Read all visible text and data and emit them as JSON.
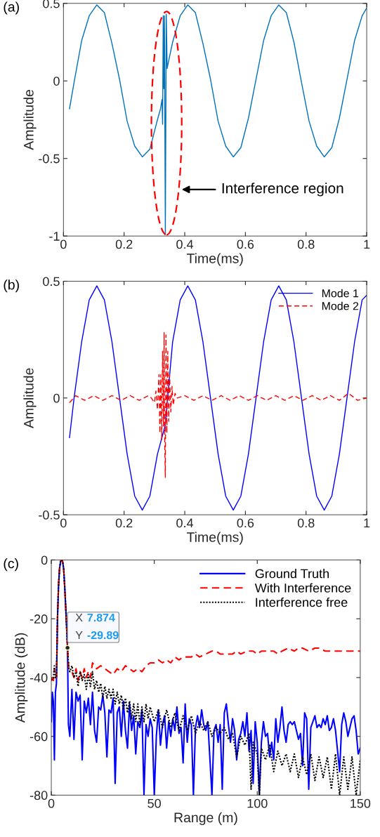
{
  "chart_data": [
    {
      "type": "line",
      "title": "(a)",
      "xlabel": "Time(ms)",
      "ylabel": "Amplitude",
      "xlim": [
        0,
        1
      ],
      "ylim": [
        -1,
        0.5
      ],
      "xticks": [
        0,
        0.2,
        0.4,
        0.6,
        0.8,
        1
      ],
      "yticks": [
        -1,
        -0.5,
        0,
        0.5
      ],
      "grid": false,
      "legend": false,
      "annotations": [
        "Interference region"
      ],
      "series": [
        {
          "color": "#0072bd",
          "line_style": "solid",
          "x": [
            0.02,
            0.035,
            0.06,
            0.085,
            0.11,
            0.135,
            0.16,
            0.185,
            0.21,
            0.235,
            0.26,
            0.285,
            0.31,
            0.32,
            0.325,
            0.327,
            0.329,
            0.331,
            0.333,
            0.336,
            0.339,
            0.342,
            0.346,
            0.36,
            0.385,
            0.41,
            0.435,
            0.46,
            0.485,
            0.51,
            0.535,
            0.56,
            0.585,
            0.61,
            0.635,
            0.66,
            0.685,
            0.71,
            0.735,
            0.76,
            0.785,
            0.81,
            0.835,
            0.86,
            0.885,
            0.91,
            0.935,
            0.96,
            0.985,
            1
          ],
          "values": [
            -0.18,
            -0.01,
            0.26,
            0.42,
            0.49,
            0.44,
            0.24,
            0.01,
            -0.26,
            -0.42,
            -0.49,
            -0.44,
            -0.25,
            -0.18,
            -0.12,
            -0.28,
            0.42,
            -0.05,
            0.42,
            -0.99,
            0.43,
            0.08,
            0.12,
            0.25,
            0.42,
            0.49,
            0.44,
            0.24,
            0.01,
            -0.26,
            -0.42,
            -0.49,
            -0.43,
            -0.24,
            0.01,
            0.26,
            0.42,
            0.49,
            0.44,
            0.25,
            -0.01,
            -0.26,
            -0.42,
            -0.49,
            -0.43,
            -0.24,
            0.01,
            0.26,
            0.42,
            0.47
          ]
        }
      ]
    },
    {
      "type": "line",
      "title": "(b)",
      "xlabel": "Time(ms)",
      "ylabel": "Amplitude",
      "xlim": [
        0,
        1
      ],
      "ylim": [
        -0.5,
        0.5
      ],
      "xticks": [
        0,
        0.2,
        0.4,
        0.6,
        0.8,
        1
      ],
      "yticks": [
        -0.5,
        0,
        0.5
      ],
      "grid": false,
      "legend": "top right",
      "series": [
        {
          "name": "Mode 1",
          "color": "#0000ff",
          "line_style": "solid",
          "x": [
            0.02,
            0.035,
            0.06,
            0.085,
            0.11,
            0.135,
            0.16,
            0.185,
            0.21,
            0.235,
            0.26,
            0.285,
            0.31,
            0.335,
            0.36,
            0.385,
            0.41,
            0.435,
            0.46,
            0.485,
            0.51,
            0.535,
            0.56,
            0.585,
            0.61,
            0.635,
            0.66,
            0.685,
            0.71,
            0.735,
            0.76,
            0.785,
            0.81,
            0.835,
            0.86,
            0.885,
            0.91,
            0.935,
            0.96,
            0.985,
            1
          ],
          "values": [
            -0.17,
            0,
            0.24,
            0.42,
            0.48,
            0.42,
            0.24,
            0,
            -0.24,
            -0.42,
            -0.48,
            -0.42,
            -0.24,
            -0.12,
            0.24,
            0.42,
            0.48,
            0.42,
            0.24,
            0,
            -0.24,
            -0.42,
            -0.48,
            -0.42,
            -0.24,
            0,
            0.24,
            0.42,
            0.48,
            0.42,
            0.24,
            0,
            -0.24,
            -0.42,
            -0.48,
            -0.42,
            -0.24,
            0,
            0.24,
            0.42,
            0.44
          ]
        },
        {
          "name": "Mode 2",
          "color": "#ff0000",
          "line_style": "dashed",
          "x": [
            0.02,
            0.04,
            0.07,
            0.1,
            0.13,
            0.16,
            0.19,
            0.22,
            0.25,
            0.28,
            0.29,
            0.3,
            0.305,
            0.31,
            0.315,
            0.318,
            0.321,
            0.324,
            0.327,
            0.33,
            0.332,
            0.334,
            0.336,
            0.338,
            0.341,
            0.344,
            0.347,
            0.35,
            0.354,
            0.358,
            0.362,
            0.368,
            0.375,
            0.4,
            0.43,
            0.46,
            0.49,
            0.52,
            0.55,
            0.58,
            0.61,
            0.64,
            0.67,
            0.7,
            0.73,
            0.76,
            0.79,
            0.82,
            0.85,
            0.88,
            0.91,
            0.94,
            0.97,
            1
          ],
          "values": [
            -0.02,
            0.01,
            -0.01,
            0.01,
            -0.01,
            0.01,
            -0.01,
            0.01,
            -0.01,
            0.01,
            0,
            -0.02,
            0.03,
            -0.05,
            0.1,
            -0.15,
            0.1,
            -0.18,
            0.2,
            -0.12,
            0.28,
            -0.2,
            -0.34,
            0.27,
            -0.15,
            0.2,
            -0.1,
            0.1,
            -0.06,
            0.05,
            -0.03,
            0.02,
            0,
            0.01,
            -0.01,
            0.01,
            -0.01,
            0.01,
            -0.01,
            0.01,
            -0.01,
            0.01,
            -0.01,
            0.01,
            -0.01,
            0.01,
            -0.01,
            0.01,
            -0.01,
            0.01,
            -0.01,
            0.02,
            -0.01,
            0
          ]
        }
      ]
    },
    {
      "type": "line",
      "title": "(c)",
      "xlabel": "Range (m)",
      "ylabel": "Amplitude (dB)",
      "xlim": [
        0,
        150
      ],
      "ylim": [
        -80,
        0
      ],
      "xticks": [
        0,
        50,
        100,
        150
      ],
      "yticks": [
        -80,
        -60,
        -40,
        -20,
        0
      ],
      "grid": false,
      "legend": "top right",
      "annotations": [
        {
          "text": "X 7.874",
          "x": 7.874,
          "y": -29.89
        },
        {
          "text": "Y -29.89",
          "x": 7.874,
          "y": -29.89
        }
      ],
      "series": [
        {
          "name": "Ground Truth",
          "color": "#0000ff",
          "line_style": "solid",
          "x": [
            0,
            0.5,
            1,
            1.5,
            2,
            2.5,
            3,
            3.5,
            4,
            4.5,
            5,
            5.5,
            6,
            6.5,
            7,
            7.874,
            8.3,
            9,
            10,
            11,
            12,
            13,
            14,
            15,
            16,
            17,
            18,
            19,
            20,
            21,
            22,
            23,
            24,
            25,
            26,
            27,
            28,
            29,
            30,
            31,
            32,
            33,
            34,
            35,
            36,
            37,
            38,
            39,
            40,
            41,
            42,
            43,
            44,
            45,
            46,
            47,
            48,
            49,
            50,
            51,
            52,
            53,
            54,
            55,
            56,
            57,
            58,
            59,
            60,
            61,
            62,
            63,
            64,
            65,
            66,
            67,
            68,
            69,
            70,
            71,
            72,
            73,
            74,
            75,
            76,
            78,
            79,
            80,
            81,
            82,
            83,
            84,
            85,
            86,
            87,
            88,
            89,
            90,
            91,
            92,
            93,
            94,
            95,
            96,
            97,
            98,
            99,
            100,
            101,
            102,
            103,
            104,
            105,
            106,
            107,
            108,
            109,
            110,
            111,
            112,
            113,
            114,
            115,
            116,
            117,
            118,
            119,
            120,
            121,
            122,
            123,
            124,
            125,
            126,
            127,
            128,
            129,
            130,
            131,
            132,
            133,
            134,
            135,
            136,
            137,
            138,
            140,
            141,
            142,
            143,
            144,
            145,
            146,
            147,
            148,
            149,
            150
          ],
          "values": [
            -55,
            -45,
            -48,
            -68,
            -45,
            -42,
            -20,
            -9,
            -3,
            -0.5,
            0,
            -0.5,
            -3,
            -9,
            -16,
            -30,
            -56,
            -60,
            -44,
            -61,
            -45,
            -48,
            -46,
            -68,
            -48,
            -52,
            -47,
            -56,
            -45,
            -58,
            -62,
            -50,
            -51,
            -46,
            -52,
            -67,
            -51,
            -52,
            -47,
            -76,
            -52,
            -50,
            -60,
            -48,
            -58,
            -64,
            -49,
            -58,
            -53,
            -66,
            -55,
            -57,
            -51,
            -80,
            -56,
            -60,
            -54,
            -57,
            -80,
            -60,
            -51,
            -63,
            -56,
            -53,
            -64,
            -55,
            -60,
            -54,
            -58,
            -50,
            -59,
            -57,
            -69,
            -49,
            -62,
            -54,
            -56,
            -80,
            -57,
            -53,
            -57,
            -51,
            -56,
            -58,
            -55,
            -80,
            -58,
            -56,
            -62,
            -56,
            -78,
            -52,
            -49,
            -56,
            -62,
            -54,
            -58,
            -68,
            -61,
            -59,
            -55,
            -60,
            -52,
            -65,
            -58,
            -76,
            -55,
            -62,
            -80,
            -62,
            -55,
            -60,
            -59,
            -67,
            -62,
            -68,
            -54,
            -62,
            -57,
            -50,
            -58,
            -62,
            -56,
            -55,
            -56,
            -55,
            -58,
            -61,
            -59,
            -70,
            -52,
            -54,
            -78,
            -57,
            -55,
            -53,
            -57,
            -56,
            -57,
            -54,
            -56,
            -53,
            -58,
            -57,
            -54,
            -58,
            -72,
            -56,
            -52,
            -55,
            -60,
            -57,
            -54,
            -53,
            -58,
            -66,
            -64
          ]
        },
        {
          "name": "With Interference",
          "color": "#ff0000",
          "line_style": "dashed",
          "x": [
            0,
            1,
            1.5,
            2,
            2.5,
            3,
            3.5,
            4,
            4.5,
            5,
            5.5,
            6,
            6.5,
            7,
            7.874,
            8.5,
            10,
            11,
            12,
            13,
            14,
            15,
            16,
            17,
            18,
            19,
            20,
            22,
            24,
            26,
            28,
            30,
            32,
            34,
            36,
            38,
            40,
            42,
            44,
            46,
            48,
            50,
            52,
            54,
            56,
            58,
            60,
            62,
            64,
            66,
            68,
            70,
            72,
            75,
            78,
            80,
            82,
            85,
            88,
            90,
            92,
            95,
            98,
            100,
            102,
            105,
            108,
            110,
            112,
            115,
            118,
            120,
            122,
            125,
            128,
            130,
            133,
            136,
            140,
            143,
            146,
            150
          ],
          "values": [
            -40,
            -41,
            -37,
            -40,
            -40,
            -20,
            -9,
            -3,
            -0.5,
            0,
            -0.5,
            -3,
            -9,
            -16,
            -30,
            -37,
            -38,
            -40,
            -37,
            -41,
            -38,
            -40,
            -37,
            -40,
            -38,
            -40,
            -35,
            -37,
            -36,
            -37,
            -38,
            -39,
            -37,
            -38,
            -36,
            -37,
            -38,
            -37,
            -38,
            -36,
            -35,
            -35,
            -34,
            -35,
            -34,
            -35,
            -33,
            -34,
            -33,
            -33,
            -33,
            -32,
            -33,
            -32,
            -31,
            -31,
            -32,
            -32,
            -32,
            -31,
            -32,
            -31,
            -31,
            -32,
            -31,
            -31,
            -31,
            -32,
            -31,
            -30,
            -31,
            -30,
            -30,
            -31,
            -30,
            -30,
            -31,
            -31,
            -31,
            -31,
            -31,
            -31
          ]
        },
        {
          "name": "Interference free",
          "color": "#000000",
          "line_style": "dotted",
          "x": [
            0,
            1,
            1.5,
            2,
            2.5,
            3,
            3.5,
            4,
            4.5,
            5,
            5.5,
            6,
            6.5,
            7,
            7.874,
            8.5,
            9,
            10,
            11,
            12,
            13,
            14,
            15,
            16,
            17,
            18,
            19,
            20,
            21,
            22,
            23,
            24,
            25,
            26,
            27,
            28,
            29,
            30,
            31,
            32,
            33,
            34,
            35,
            36,
            37,
            38,
            39,
            40,
            41,
            42,
            43,
            44,
            45,
            46,
            47,
            48,
            50,
            52,
            54,
            56,
            58,
            60,
            62,
            64,
            66,
            68,
            70,
            72,
            74,
            76,
            78,
            80,
            82,
            84,
            86,
            88,
            90,
            92,
            94,
            96,
            97,
            98,
            100,
            101,
            102,
            104,
            106,
            108,
            110,
            112,
            114,
            116,
            118,
            120,
            122,
            124,
            126,
            128,
            130,
            132,
            134,
            136,
            138,
            140,
            142,
            144,
            146,
            148,
            150
          ],
          "values": [
            -41,
            -40,
            -36,
            -40,
            -40,
            -20,
            -9,
            -3,
            -0.5,
            0,
            -0.5,
            -3,
            -9,
            -16,
            -30,
            -37,
            -38,
            -36,
            -40,
            -38,
            -43,
            -38,
            -41,
            -39,
            -44,
            -39,
            -43,
            -38,
            -44,
            -41,
            -45,
            -42,
            -47,
            -43,
            -47,
            -44,
            -47,
            -44,
            -49,
            -45,
            -49,
            -46,
            -51,
            -47,
            -52,
            -48,
            -54,
            -49,
            -55,
            -49,
            -56,
            -50,
            -55,
            -49,
            -54,
            -50,
            -55,
            -51,
            -57,
            -51,
            -57,
            -52,
            -58,
            -53,
            -58,
            -53,
            -59,
            -55,
            -58,
            -55,
            -60,
            -57,
            -59,
            -57,
            -61,
            -59,
            -67,
            -60,
            -63,
            -59,
            -78,
            -62,
            -66,
            -80,
            -64,
            -68,
            -63,
            -72,
            -65,
            -70,
            -66,
            -72,
            -66,
            -74,
            -67,
            -73,
            -66,
            -75,
            -67,
            -74,
            -67,
            -78,
            -66,
            -80,
            -67,
            -78,
            -67,
            -80,
            -68
          ]
        }
      ]
    }
  ]
}
